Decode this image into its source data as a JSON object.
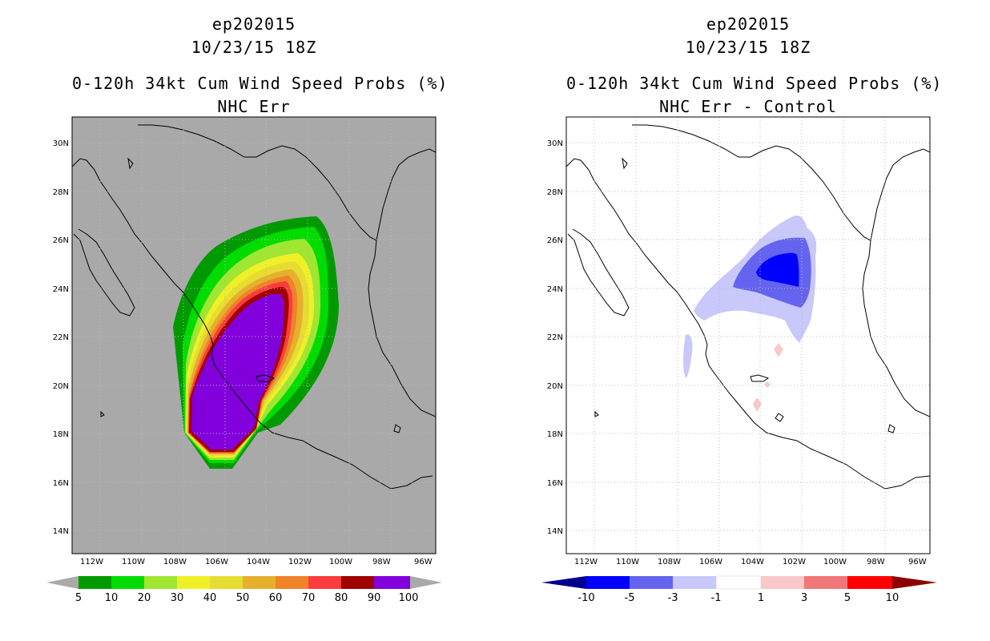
{
  "left_panel": {
    "line1": "ep202015",
    "line2": "10/23/15 18Z",
    "line3": "0-120h 34kt Cum Wind Speed Probs (%)",
    "line4": "NHC Err",
    "colorbar_labels": [
      "5",
      "10",
      "20",
      "30",
      "40",
      "50",
      "60",
      "70",
      "80",
      "90",
      "100"
    ],
    "colorbar_colors": [
      "#009a00",
      "#00dc00",
      "#a0e632",
      "#f0f028",
      "#e6dc32",
      "#e6af2d",
      "#f08228",
      "#fa3c3c",
      "#a00000",
      "#8200dc"
    ],
    "background_color": "#a9a9a9"
  },
  "right_panel": {
    "line1": "ep202015",
    "line2": "10/23/15 18Z",
    "line3": "0-120h 34kt Cum Wind Speed Probs (%)",
    "line4": "NHC Err - Control",
    "colorbar_labels": [
      "-10",
      "-5",
      "-3",
      "-1",
      "1",
      "3",
      "5",
      "10"
    ],
    "colorbar_colors": [
      "#0000ff",
      "#6464f0",
      "#c8c8fa",
      "#ffffff",
      "#fac8c8",
      "#f07878",
      "#ff0000"
    ],
    "colorbar_end_low": "#00008c",
    "colorbar_end_high": "#8c0000"
  },
  "axes": {
    "lon_labels": [
      "112W",
      "110W",
      "108W",
      "106W",
      "104W",
      "102W",
      "100W",
      "98W",
      "96W"
    ],
    "lat_labels": [
      "30N",
      "28N",
      "26N",
      "24N",
      "22N",
      "20N",
      "18N",
      "16N",
      "14N"
    ]
  }
}
